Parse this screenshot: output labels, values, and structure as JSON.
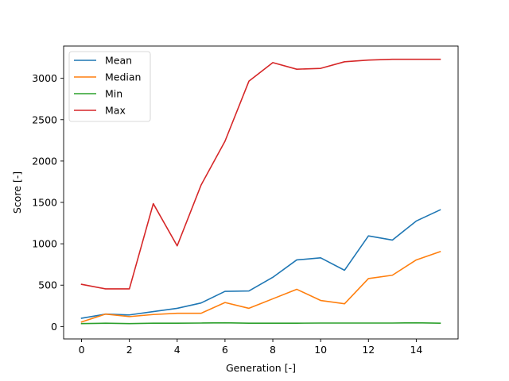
{
  "chart_data": {
    "type": "line",
    "xlabel": "Generation [-]",
    "ylabel": "Score [-]",
    "xlim": [
      -0.75,
      15.75
    ],
    "ylim": [
      -150,
      3390
    ],
    "xticks": [
      0,
      2,
      4,
      6,
      8,
      10,
      12,
      14
    ],
    "yticks": [
      0,
      500,
      1000,
      1500,
      2000,
      2500,
      3000
    ],
    "grid": false,
    "legend_position": "top-left",
    "x": [
      0,
      1,
      2,
      3,
      4,
      5,
      6,
      7,
      8,
      9,
      10,
      11,
      12,
      13,
      14,
      15
    ],
    "series": [
      {
        "name": "Mean",
        "color": "#1f77b4",
        "values": [
          100,
          150,
          140,
          180,
          220,
          285,
          425,
          430,
          595,
          805,
          830,
          680,
          1095,
          1045,
          1275,
          1410
        ]
      },
      {
        "name": "Median",
        "color": "#ff7f0e",
        "values": [
          55,
          150,
          120,
          145,
          160,
          160,
          290,
          220,
          335,
          450,
          315,
          275,
          580,
          620,
          805,
          905
        ]
      },
      {
        "name": "Min",
        "color": "#2ca02c",
        "values": [
          35,
          40,
          35,
          40,
          40,
          42,
          45,
          40,
          40,
          40,
          42,
          42,
          42,
          42,
          45,
          40
        ]
      },
      {
        "name": "Max",
        "color": "#d62728",
        "values": [
          510,
          455,
          455,
          1485,
          975,
          1710,
          2240,
          2965,
          3190,
          3110,
          3120,
          3200,
          3220,
          3230,
          3230,
          3230
        ]
      }
    ]
  }
}
